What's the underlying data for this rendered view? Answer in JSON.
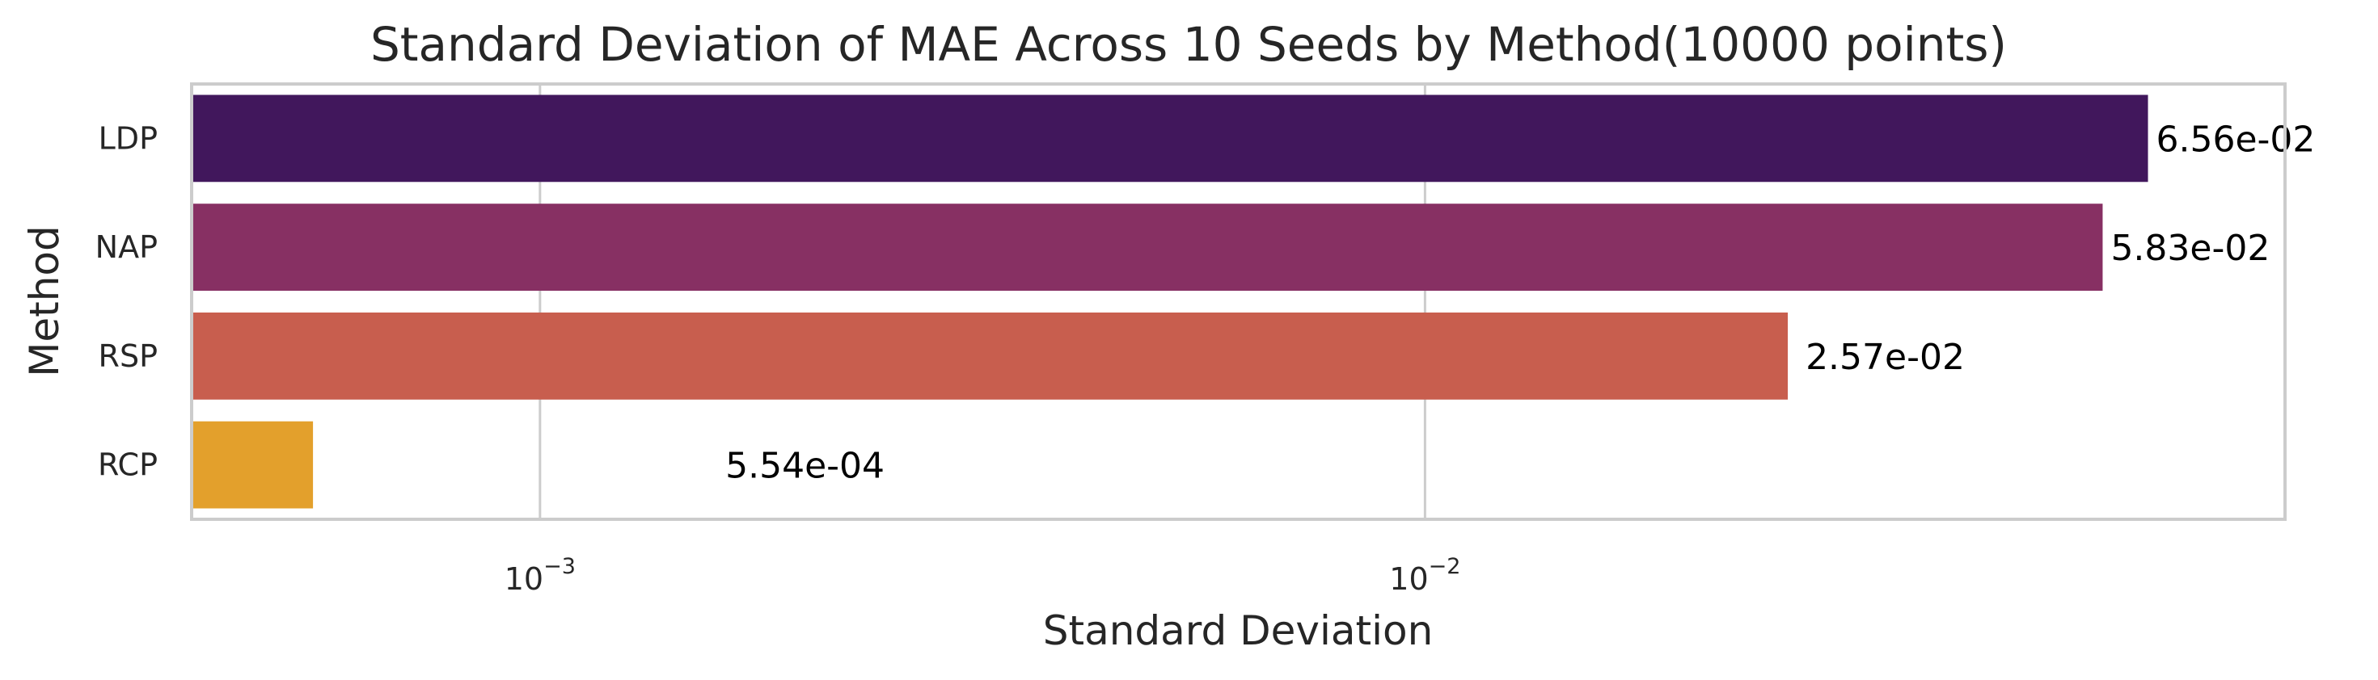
{
  "chart_data": {
    "type": "bar",
    "orientation": "horizontal",
    "title": "Standard Deviation of MAE Across 10 Seeds by Method(10000 points)",
    "xlabel": "Standard Deviation",
    "ylabel": "Method",
    "xscale": "log",
    "xlim": [
      0.000404,
      0.0937
    ],
    "grid": true,
    "categories": [
      "LDP",
      "NAP",
      "RSP",
      "RCP"
    ],
    "values": [
      0.0656,
      0.0583,
      0.0257,
      0.000554
    ],
    "value_labels": [
      "6.56e-02",
      "5.83e-02",
      "2.57e-02",
      "5.54e-04"
    ],
    "colors": [
      "#41175c",
      "#873063",
      "#c85e4e",
      "#e3a02c"
    ],
    "xticks": [
      {
        "value": 0.001,
        "base": "10",
        "exp": "−3"
      },
      {
        "value": 0.01,
        "base": "10",
        "exp": "−2"
      }
    ]
  }
}
